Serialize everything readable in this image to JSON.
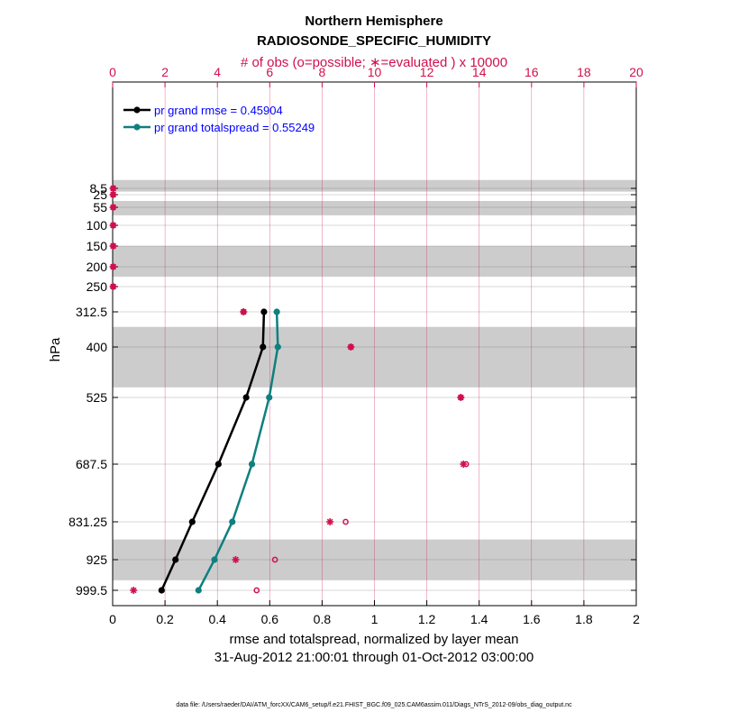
{
  "title": "Northern Hemisphere",
  "subtitle": "RADIOSONDE_SPECIFIC_HUMIDITY",
  "top_axis_label": "# of obs (o=possible; ∗=evaluated ) x 10000",
  "xlabel": "rmse and totalspread, normalized by layer mean",
  "date_range": "31-Aug-2012 21:00:01 through 01-Oct-2012 03:00:00",
  "ylabel": "hPa",
  "footer": "data file: /Users/raeder/DAI/ATM_forcXX/CAM6_setup/f.e21.FHIST_BGC.f09_025.CAM6assim.011/Diags_NTrS_2012-09/obs_diag_output.nc",
  "colors": {
    "rmse": "#000000",
    "totalspread": "#0f7f7f",
    "obs": "#d0104c",
    "band": "#cccccc",
    "legend_text": "#0000ff"
  },
  "chart_data": {
    "type": "line",
    "x_range": [
      0,
      2
    ],
    "x_ticks": [
      "0",
      "0.2",
      "0.4",
      "0.6",
      "0.8",
      "1",
      "1.2",
      "1.4",
      "1.6",
      "1.8",
      "2"
    ],
    "top_x_range": [
      0,
      20
    ],
    "top_x_ticks": [
      "0",
      "2",
      "4",
      "6",
      "8",
      "10",
      "12",
      "14",
      "16",
      "18",
      "20"
    ],
    "y_levels": [
      8.5,
      25,
      55,
      100,
      150,
      200,
      250,
      312.5,
      400,
      525,
      687.5,
      831.25,
      925,
      999.5
    ],
    "y_tick_labels": [
      "8.5",
      "25",
      "55",
      "100",
      "150",
      "200",
      "250",
      "312.5",
      "400",
      "525",
      "687.5",
      "831.25",
      "925",
      "999.5"
    ],
    "gray_bands": [
      [
        0,
        17
      ],
      [
        40,
        75
      ],
      [
        150,
        225
      ],
      [
        350,
        500
      ],
      [
        875,
        975
      ]
    ],
    "legend": [
      {
        "label": "pr grand rmse = 0.45904",
        "color": "#000000"
      },
      {
        "label": "pr grand totalspread = 0.55249",
        "color": "#0f7f7f"
      }
    ],
    "series": [
      {
        "name": "rmse",
        "pressure": [
          312.5,
          400,
          525,
          687.5,
          831.25,
          925,
          999.5
        ],
        "values": [
          0.578,
          0.574,
          0.51,
          0.404,
          0.304,
          0.24,
          0.187
        ]
      },
      {
        "name": "totalspread",
        "pressure": [
          312.5,
          400,
          525,
          687.5,
          831.25,
          925,
          999.5
        ],
        "values": [
          0.627,
          0.631,
          0.598,
          0.532,
          0.457,
          0.389,
          0.328
        ]
      }
    ],
    "obs_possible": {
      "pressure": [
        8.5,
        25,
        55,
        100,
        150,
        200,
        250,
        312.5,
        400,
        525,
        687.5,
        831.25,
        925,
        999.5
      ],
      "values": [
        0.02,
        0.02,
        0.02,
        0.02,
        0.02,
        0.02,
        0.02,
        5.0,
        9.1,
        13.3,
        13.5,
        8.9,
        6.2,
        5.5
      ]
    },
    "obs_evaluated": {
      "pressure": [
        8.5,
        25,
        55,
        100,
        150,
        200,
        250,
        312.5,
        400,
        525,
        687.5,
        831.25,
        925,
        999.5
      ],
      "values": [
        0.02,
        0.02,
        0.02,
        0.02,
        0.02,
        0.02,
        0.02,
        5.0,
        9.1,
        13.3,
        13.4,
        8.3,
        4.7,
        0.8
      ]
    }
  }
}
